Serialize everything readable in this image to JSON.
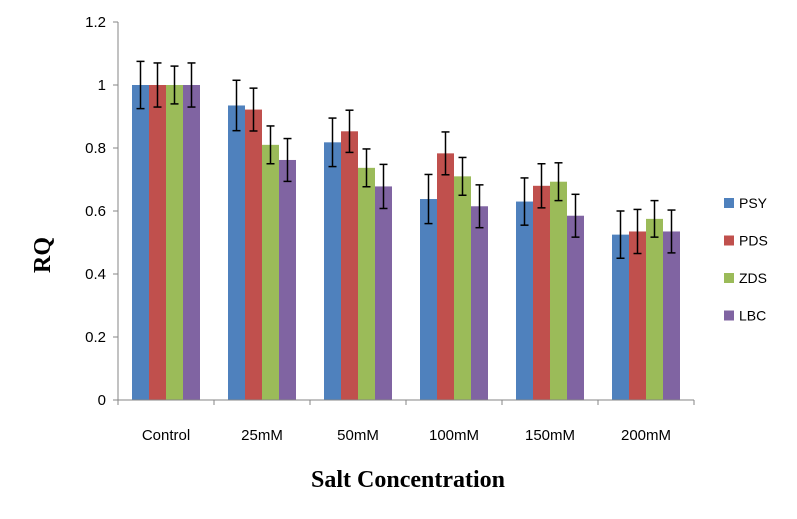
{
  "chart_data": {
    "type": "bar",
    "title": "",
    "xlabel": "Salt Concentration",
    "ylabel": "RQ",
    "ylim": [
      0,
      1.2
    ],
    "yticks": [
      "0",
      "0.2",
      "0.4",
      "0.6",
      "0.8",
      "1",
      "1.2"
    ],
    "grid": false,
    "legend_position": "right",
    "categories": [
      "Control",
      "25mM",
      "50mM",
      "100mM",
      "150mM",
      "200mM"
    ],
    "series": [
      {
        "name": "PSY",
        "color": "#4F81BD",
        "values": [
          1.0,
          0.935,
          0.818,
          0.638,
          0.63,
          0.525
        ],
        "errors": [
          0.075,
          0.08,
          0.077,
          0.078,
          0.075,
          0.075
        ]
      },
      {
        "name": "PDS",
        "color": "#C0504D",
        "values": [
          1.0,
          0.922,
          0.853,
          0.783,
          0.68,
          0.535
        ],
        "errors": [
          0.07,
          0.068,
          0.067,
          0.068,
          0.07,
          0.07
        ]
      },
      {
        "name": "ZDS",
        "color": "#9BBB59",
        "values": [
          1.0,
          0.81,
          0.737,
          0.71,
          0.693,
          0.575
        ],
        "errors": [
          0.06,
          0.06,
          0.06,
          0.06,
          0.06,
          0.058
        ]
      },
      {
        "name": "LBC",
        "color": "#8064A2",
        "values": [
          1.0,
          0.762,
          0.678,
          0.615,
          0.585,
          0.535
        ],
        "errors": [
          0.07,
          0.068,
          0.07,
          0.068,
          0.068,
          0.068
        ]
      }
    ]
  }
}
